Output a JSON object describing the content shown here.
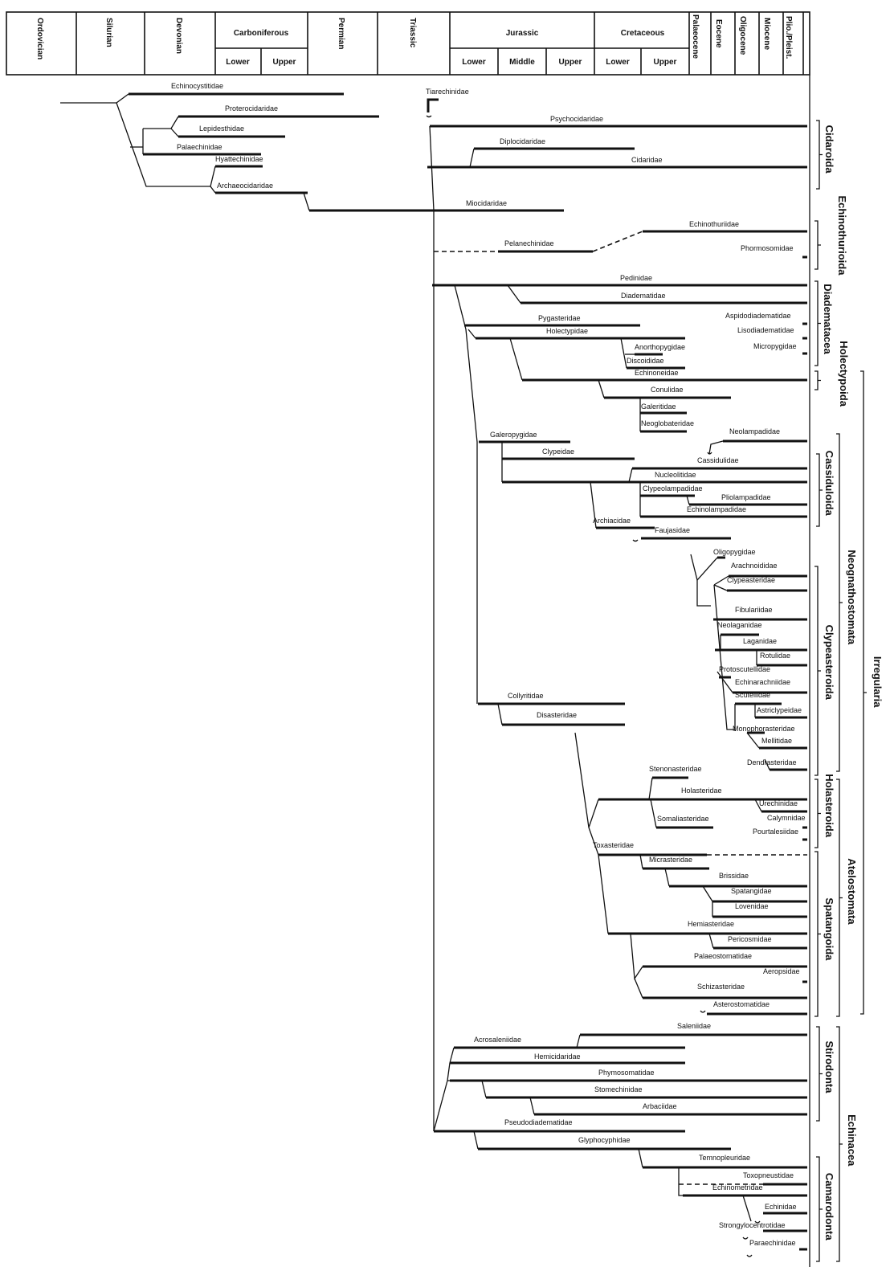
{
  "header": {
    "periods": [
      "Ordovician",
      "Silurian",
      "Devonian",
      "Carboniferous",
      "Permian",
      "Triassic",
      "Jurassic",
      "Cretaceous",
      "Palaeocene",
      "Eocene",
      "Oligocene",
      "Miocene",
      "Plio./Pleist."
    ],
    "subdivisions": {
      "carboniferous": [
        "Lower",
        "Upper"
      ],
      "jurassic": [
        "Lower",
        "Middle",
        "Upper"
      ],
      "cretaceous": [
        "Lower",
        "Upper"
      ]
    }
  },
  "taxa": [
    "Echinocystitidae",
    "Proterocidaridae",
    "Lepidesthidae",
    "Palaechinidae",
    "Hyattechinidae",
    "Archaeocidaridae",
    "Tiarechinidae",
    "Psychocidaridae",
    "Diplocidaridae",
    "Cidaridae",
    "Miocidaridae",
    "Echinothuriidae",
    "Phormosomidae",
    "Pelanechinidae",
    "Pedinidae",
    "Diadematidae",
    "Aspidodiadematidae",
    "Lisodiadematidae",
    "Micropygidae",
    "Pygasteridae",
    "Holectypidae",
    "Anorthopygidae",
    "Discoididae",
    "Echinoneidae",
    "Conulidae",
    "Galeritidae",
    "Neoglobateridae",
    "Galeropygidae",
    "Neolampadidae",
    "Clypeidae",
    "Cassidulidae",
    "Nucleolitidae",
    "Clypeolampadidae",
    "Pliolampadidae",
    "Echinolampadidae",
    "Archiacidae",
    "Faujasidae",
    "Oligopygidae",
    "Arachnoididae",
    "Clypeasteridae",
    "Fibulariidae",
    "Neolaganidae",
    "Laganidae",
    "Rotulidae",
    "Protoscutellidae",
    "Echinarachniidae",
    "Scutellidae",
    "Astriclypeidae",
    "Monophorasteridae",
    "Mellitidae",
    "Dendrasteridae",
    "Collyritidae",
    "Disasteridae",
    "Stenonasteridae",
    "Holasteridae",
    "Urechinidae",
    "Somaliasteridae",
    "Calymnidae",
    "Pourtalesiidae",
    "Toxasteridae",
    "Micrasteridae",
    "Brissidae",
    "Spatangidae",
    "Lovenidae",
    "Hemiasteridae",
    "Pericosmidae",
    "Palaeostomatidae",
    "Aeropsidae",
    "Schizasteridae",
    "Asterostomatidae",
    "Saleniidae",
    "Acrosaleniidae",
    "Hemicidaridae",
    "Phymosomatidae",
    "Stomechinidae",
    "Arbaciidae",
    "Pseudodiadematidae",
    "Glyphocyphidae",
    "Temnopleuridae",
    "Toxopneustidae",
    "Echinometridae",
    "Echinidae",
    "Strongylocentrotidae",
    "Paraechinidae"
  ],
  "groups": [
    "Cidaroida",
    "Echinothurioida",
    "Diadematacea",
    "Holectypoida",
    "Cassiduloida",
    "Neognathostomata",
    "Clypeasteroida",
    "Holasteroida",
    "Spatangoida",
    "Atelostomata",
    "Irregularia",
    "Stirodonta",
    "Echinacea",
    "Camarodonta"
  ]
}
